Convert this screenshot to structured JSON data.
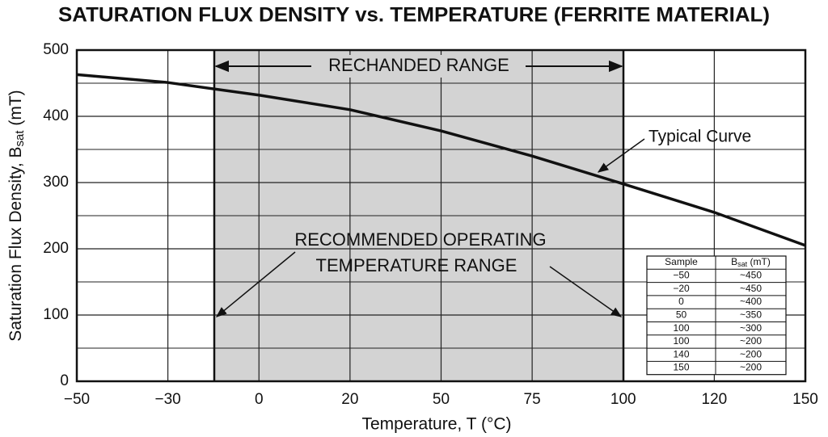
{
  "chart_data": {
    "type": "line",
    "title": "SATURATION FLUX DENSITY vs. TEMPERATURE (FERRITE MATERIAL)",
    "xlabel": "Temperature, T (°C)",
    "ylabel": [
      "Saturation Flux Density, B",
      "sat",
      " (mT)"
    ],
    "categories": [
      "−50",
      "−30",
      "0",
      "20",
      "50",
      "75",
      "100",
      "120",
      "150"
    ],
    "series": [
      {
        "name": "Typical Curve",
        "color": "#111111",
        "values": [
          463,
          451,
          432,
          410,
          378,
          340,
          298,
          255,
          205
        ]
      }
    ],
    "ylim": [
      0,
      500
    ],
    "yticks": [
      0,
      100,
      200,
      300,
      400,
      500
    ],
    "minor_yticks": [
      50,
      150,
      250,
      350,
      450
    ],
    "grid": true,
    "annotations": [
      "RECHANDED RANGE",
      "RECOMMENDED OPERATING",
      "TEMPERATURE RANGE"
    ],
    "shade_color": "#d3d3d3",
    "table": {
      "headers": [
        [
          "Sample"
        ],
        [
          "B",
          "sat",
          " (mT)"
        ]
      ],
      "rows": [
        [
          "−50",
          "~450"
        ],
        [
          "−20",
          "~450"
        ],
        [
          "0",
          "~400"
        ],
        [
          "50",
          "~350"
        ],
        [
          "100",
          "~300"
        ],
        [
          "100",
          "~200"
        ],
        [
          "140",
          "~200"
        ],
        [
          "150",
          "~200"
        ]
      ]
    }
  }
}
